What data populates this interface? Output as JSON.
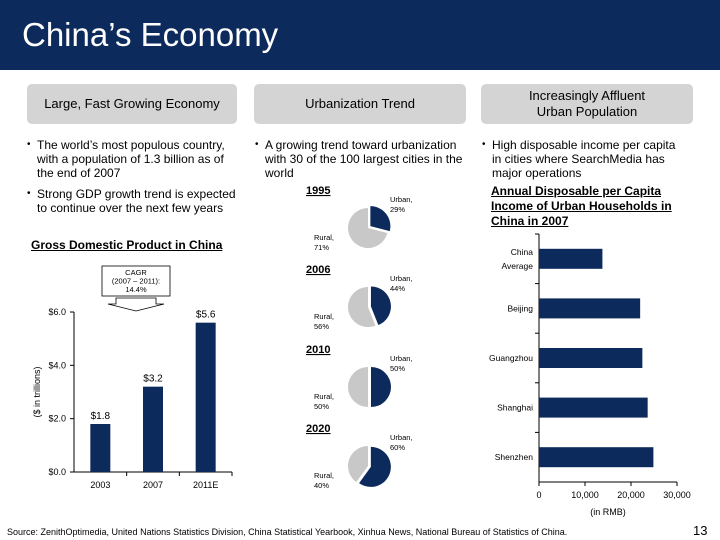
{
  "title": "China’s Economy",
  "columns": [
    {
      "header": "Large, Fast Growing Economy",
      "bullets": [
        "The world’s most populous country, with a population of 1.3 billion as of the end of 2007",
        "Strong GDP growth trend is expected to continue over the next few years"
      ]
    },
    {
      "header": "Urbanization Trend",
      "bullets": [
        "A growing trend toward urbanization with 30 of the 100 largest cities in the world"
      ]
    },
    {
      "header": "Increasingly Affluent\nUrban Population",
      "bullets": [
        "High disposable income per capita in cities where SearchMedia has major operations"
      ]
    }
  ],
  "source": "Source: ZenithOptimedia, United Nations Statistics Division, China Statistical Yearbook, Xinhua News, National Bureau of Statistics of China.",
  "page_number": "13",
  "colors": {
    "navy": "#0d2a5c",
    "grey": "#c8c8c8",
    "pill": "#d4d4d4"
  },
  "chart_data": [
    {
      "type": "bar",
      "title": "Gross Domestic Product in China",
      "ylabel": "($ in trillions)",
      "categories": [
        "2003",
        "2007",
        "2011E"
      ],
      "values": [
        1.8,
        3.2,
        5.6
      ],
      "value_labels": [
        "$1.8",
        "$3.2",
        "$5.6"
      ],
      "ylim": [
        0,
        6
      ],
      "yticks": [
        0,
        2,
        4,
        6
      ],
      "ytick_labels": [
        "$0.0",
        "$2.0",
        "$4.0",
        "$6.0"
      ],
      "annotation": [
        "CAGR",
        "(2007 – 2011):",
        "14.4%"
      ],
      "color": "#0d2a5c"
    },
    {
      "type": "pie",
      "charts": [
        {
          "year": "1995",
          "urban": 29,
          "rural": 71,
          "urban_label": [
            "Urban,",
            "29%"
          ],
          "rural_label": [
            "Rural,",
            "71%"
          ]
        },
        {
          "year": "2006",
          "urban": 44,
          "rural": 56,
          "urban_label": [
            "Urban,",
            "44%"
          ],
          "rural_label": [
            "Rural,",
            "56%"
          ]
        },
        {
          "year": "2010",
          "urban": 50,
          "rural": 50,
          "urban_label": [
            "Urban,",
            "50%"
          ],
          "rural_label": [
            "Rural,",
            "50%"
          ]
        },
        {
          "year": "2020",
          "urban": 60,
          "rural": 40,
          "urban_label": [
            "Urban,",
            "60%"
          ],
          "rural_label": [
            "Rural,",
            "40%"
          ]
        }
      ],
      "colors": {
        "urban": "#0d2a5c",
        "rural": "#c8c8c8"
      }
    },
    {
      "type": "bar",
      "orientation": "horizontal",
      "title": "Annual Disposable per Capita Income of Urban Households in China in 2007",
      "xlabel": "(in RMB)",
      "categories": [
        [
          "China",
          "Average"
        ],
        [
          "Beijing"
        ],
        [
          "Guangzhou"
        ],
        [
          "Shanghai"
        ],
        [
          "Shenzhen"
        ]
      ],
      "values": [
        13786,
        21989,
        22469,
        23623,
        24870
      ],
      "xlim": [
        0,
        30000
      ],
      "xticks": [
        0,
        10000,
        20000,
        30000
      ],
      "xtick_labels": [
        "0",
        "10,000",
        "20,000",
        "30,000"
      ],
      "color": "#0d2a5c"
    }
  ]
}
